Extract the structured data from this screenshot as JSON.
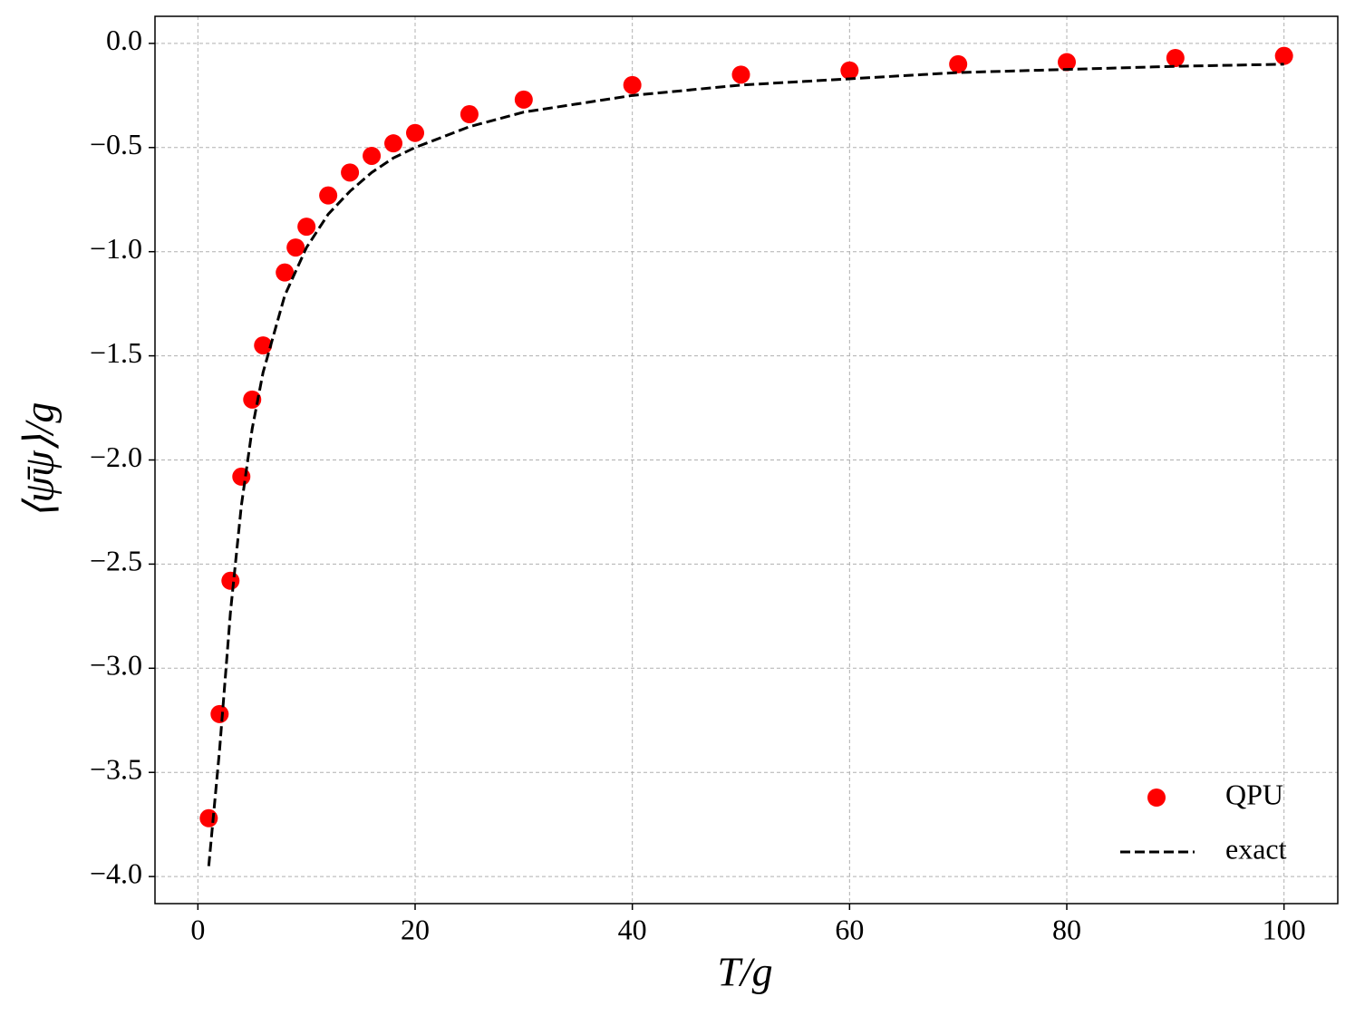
{
  "chart_data": {
    "type": "scatter",
    "xlabel": "T/g",
    "ylabel": "⟨ψ̄ψ⟩/g",
    "xlim": [
      -3.95,
      104.95
    ],
    "ylim": [
      -4.13,
      0.13
    ],
    "xticks": [
      0,
      20,
      40,
      60,
      80,
      100
    ],
    "yticks": [
      {
        "value": 0.0,
        "label": "0.0"
      },
      {
        "value": -0.5,
        "label": "−0.5"
      },
      {
        "value": -1.0,
        "label": "−1.0"
      },
      {
        "value": -1.5,
        "label": "−1.5"
      },
      {
        "value": -2.0,
        "label": "−2.0"
      },
      {
        "value": -2.5,
        "label": "−2.5"
      },
      {
        "value": -3.0,
        "label": "−3.0"
      },
      {
        "value": -3.5,
        "label": "−3.5"
      },
      {
        "value": -4.0,
        "label": "−4.0"
      }
    ],
    "grid": true,
    "legend": "lower right",
    "series": [
      {
        "name": "QPU",
        "type": "scatter",
        "color": "#ff0000",
        "x": [
          1,
          2,
          3,
          4,
          5,
          6,
          8,
          9,
          10,
          12,
          14,
          16,
          18,
          20,
          25,
          30,
          40,
          50,
          60,
          70,
          80,
          90,
          100
        ],
        "values": [
          -3.72,
          -3.22,
          -2.58,
          -2.08,
          -1.71,
          -1.45,
          -1.1,
          -0.98,
          -0.88,
          -0.73,
          -0.62,
          -0.54,
          -0.48,
          -0.43,
          -0.34,
          -0.27,
          -0.2,
          -0.15,
          -0.13,
          -0.1,
          -0.09,
          -0.07,
          -0.06
        ]
      },
      {
        "name": "exact",
        "type": "line",
        "color": "#000000",
        "x": [
          1,
          2,
          3,
          4,
          5,
          6,
          8,
          10,
          12,
          14,
          16,
          18,
          20,
          25,
          30,
          40,
          50,
          60,
          70,
          80,
          90,
          100
        ],
        "values": [
          -3.95,
          -3.39,
          -2.73,
          -2.22,
          -1.85,
          -1.58,
          -1.21,
          -0.98,
          -0.82,
          -0.71,
          -0.62,
          -0.55,
          -0.5,
          -0.4,
          -0.33,
          -0.25,
          -0.2,
          -0.17,
          -0.14,
          -0.125,
          -0.11,
          -0.1
        ]
      }
    ]
  }
}
